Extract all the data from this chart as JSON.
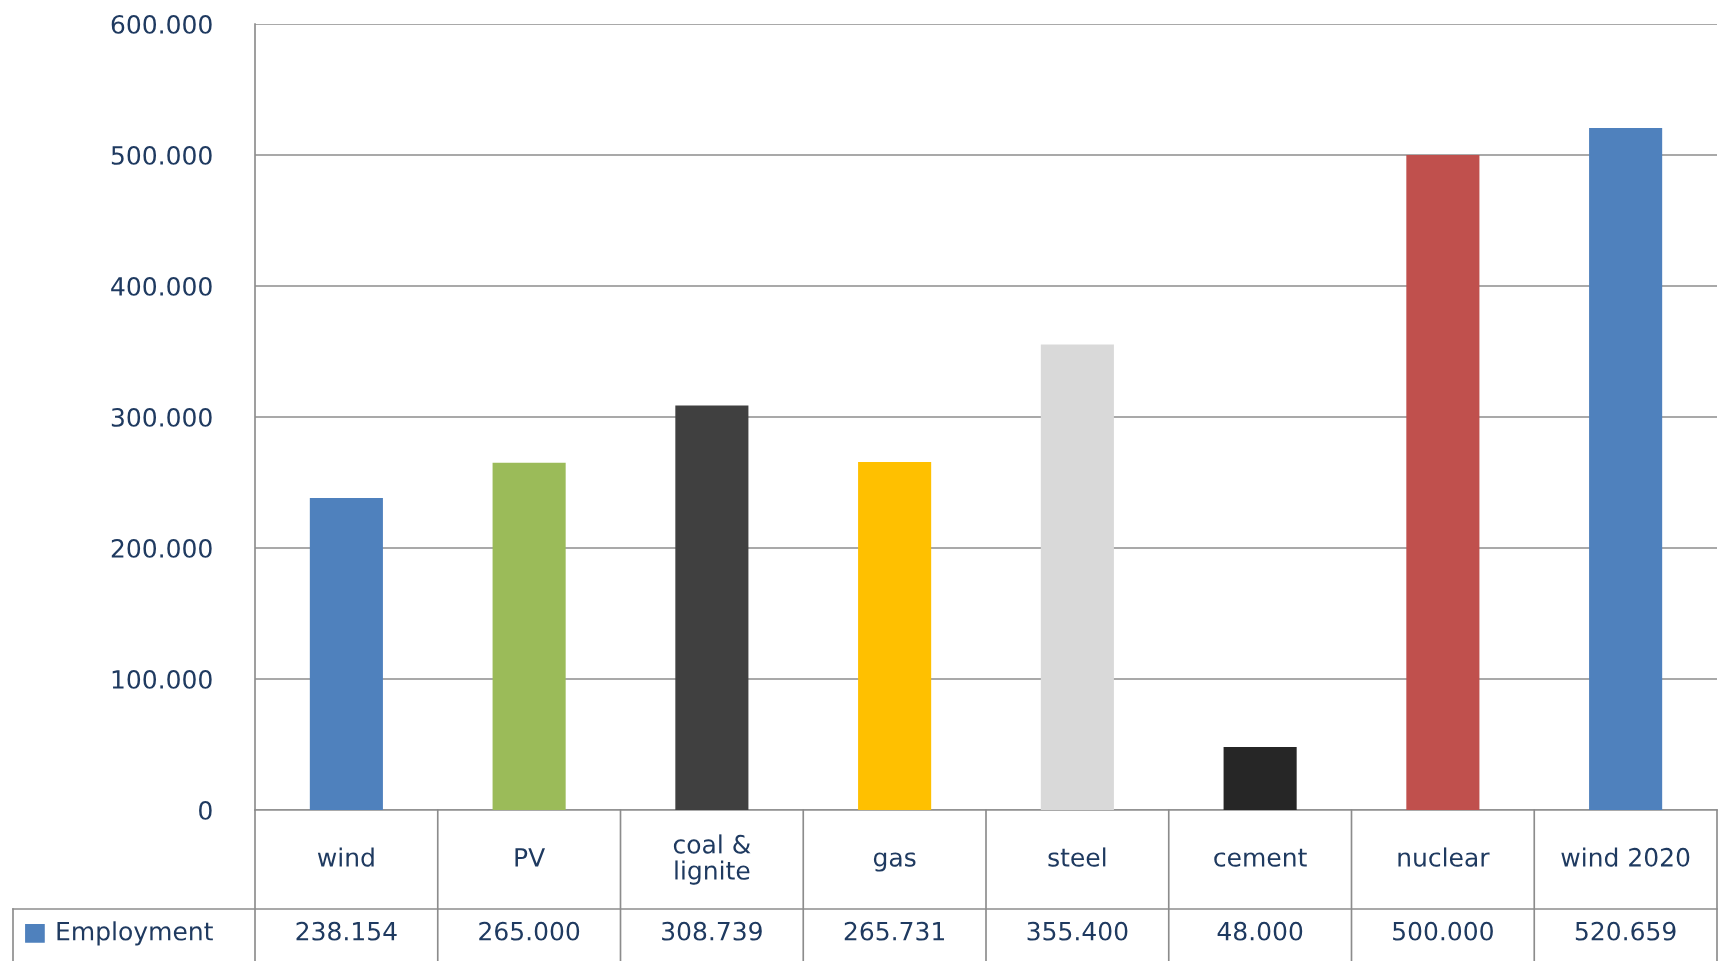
{
  "chart_data": {
    "type": "bar",
    "categories": [
      "wind",
      "PV",
      "coal &\nlignite",
      "gas",
      "steel",
      "cement",
      "nuclear",
      "wind 2020"
    ],
    "series": [
      {
        "name": "Employment",
        "color": "#4f81bd",
        "colors": [
          "#4f81bd",
          "#9bbb59",
          "#404040",
          "#ffc000",
          "#d9d9d9",
          "#262626",
          "#c0504d",
          "#4f81bd"
        ],
        "values": [
          238154,
          265000,
          308739,
          265731,
          355400,
          48000,
          500000,
          520659
        ],
        "value_labels": [
          "238.154",
          "265.000",
          "308.739",
          "265.731",
          "355.400",
          "48.000",
          "500.000",
          "520.659"
        ]
      }
    ],
    "ylim": [
      0,
      600000
    ],
    "yticks": [
      {
        "value": 0,
        "label": "0"
      },
      {
        "value": 100000,
        "label": "100.000"
      },
      {
        "value": 200000,
        "label": "200.000"
      },
      {
        "value": 300000,
        "label": "300.000"
      },
      {
        "value": 400000,
        "label": "400.000"
      },
      {
        "value": 500000,
        "label": "500.000"
      },
      {
        "value": 600000,
        "label": "600.000"
      }
    ],
    "grid": "y",
    "legend": "bottom left"
  }
}
